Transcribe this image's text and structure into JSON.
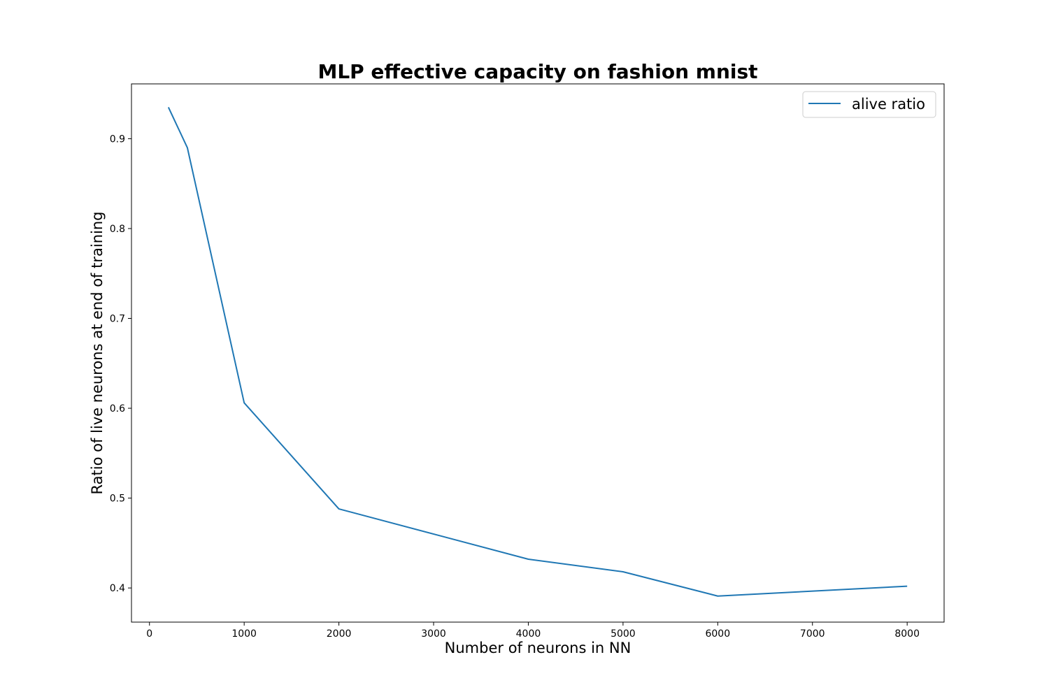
{
  "chart_data": {
    "type": "line",
    "title": "MLP effective capacity on fashion mnist",
    "xlabel": "Number of neurons in NN",
    "ylabel": "Ratio of live neurons at end of training",
    "xlim": [
      -190,
      8390
    ],
    "ylim": [
      0.362,
      0.961
    ],
    "xticks": [
      0,
      1000,
      2000,
      3000,
      4000,
      5000,
      6000,
      7000,
      8000
    ],
    "yticks": [
      0.4,
      0.5,
      0.6,
      0.7,
      0.8,
      0.9
    ],
    "xtick_labels": [
      "0",
      "1000",
      "2000",
      "3000",
      "4000",
      "5000",
      "6000",
      "7000",
      "8000"
    ],
    "ytick_labels": [
      "0.4",
      "0.5",
      "0.6",
      "0.7",
      "0.8",
      "0.9"
    ],
    "grid": false,
    "legend_position": "upper right",
    "series": [
      {
        "name": "alive ratio",
        "color": "#1f77b4",
        "x": [
          200,
          400,
          1000,
          2000,
          4000,
          5000,
          6000,
          8000
        ],
        "y": [
          0.935,
          0.89,
          0.606,
          0.488,
          0.432,
          0.418,
          0.391,
          0.402
        ]
      }
    ]
  }
}
